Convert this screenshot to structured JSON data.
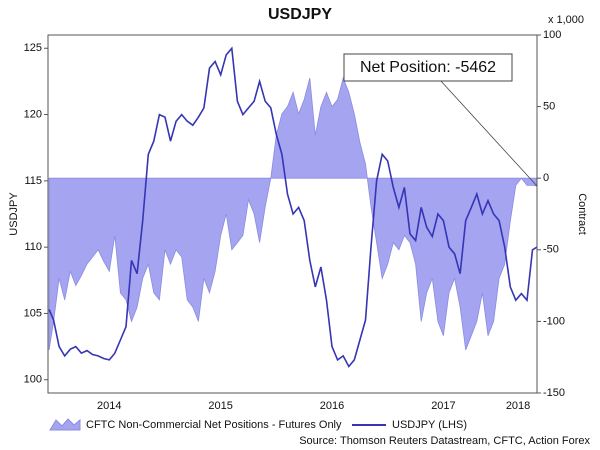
{
  "chart_data": {
    "type": "area-line",
    "title": "USDJPY",
    "ylabel": "USDJPY",
    "y2label": "Contract",
    "y2unit": "x 1,000",
    "source": "Source: Thomson Reuters Datastream, CFTC, Action Forex",
    "annotation": "Net Position: -5462",
    "grid": false,
    "xlim": [
      2013.95,
      2018.34
    ],
    "xticks": [
      {
        "value": 2014.5,
        "label": "2014"
      },
      {
        "value": 2015.5,
        "label": "2015"
      },
      {
        "value": 2016.5,
        "label": "2016"
      },
      {
        "value": 2017.5,
        "label": "2017"
      },
      {
        "value": 2018.17,
        "label": "2018"
      }
    ],
    "ylim": [
      99,
      126
    ],
    "yticks": [
      100,
      105,
      110,
      115,
      120,
      125
    ],
    "y2lim": [
      -150,
      100
    ],
    "y2ticks": [
      -150,
      -100,
      -50,
      0,
      50,
      100
    ],
    "x": [
      2013.96,
      2014,
      2014.05,
      2014.1,
      2014.15,
      2014.2,
      2014.25,
      2014.3,
      2014.35,
      2014.4,
      2014.45,
      2014.5,
      2014.55,
      2014.6,
      2014.65,
      2014.7,
      2014.75,
      2014.8,
      2014.85,
      2014.9,
      2014.95,
      2015,
      2015.05,
      2015.1,
      2015.15,
      2015.2,
      2015.25,
      2015.3,
      2015.35,
      2015.4,
      2015.45,
      2015.5,
      2015.55,
      2015.6,
      2015.65,
      2015.7,
      2015.75,
      2015.8,
      2015.85,
      2015.9,
      2015.95,
      2016,
      2016.05,
      2016.1,
      2016.15,
      2016.2,
      2016.25,
      2016.3,
      2016.35,
      2016.4,
      2016.45,
      2016.5,
      2016.55,
      2016.6,
      2016.65,
      2016.7,
      2016.75,
      2016.8,
      2016.85,
      2016.9,
      2016.95,
      2017,
      2017.05,
      2017.1,
      2017.15,
      2017.2,
      2017.25,
      2017.3,
      2017.35,
      2017.4,
      2017.45,
      2017.5,
      2017.55,
      2017.6,
      2017.65,
      2017.7,
      2017.75,
      2017.8,
      2017.85,
      2017.9,
      2017.95,
      2018,
      2018.05,
      2018.1,
      2018.15,
      2018.2,
      2018.25,
      2018.3,
      2018.34
    ],
    "series": [
      {
        "name": "CFTC Non-Commercial Net Positions - Futures Only",
        "color": "#a4a4f0",
        "axis": "y2",
        "values": [
          -120,
          -100,
          -70,
          -85,
          -65,
          -75,
          -68,
          -60,
          -55,
          -50,
          -58,
          -65,
          -40,
          -80,
          -85,
          -100,
          -90,
          -70,
          -60,
          -80,
          -85,
          -50,
          -60,
          -50,
          -55,
          -85,
          -90,
          -100,
          -70,
          -80,
          -65,
          -40,
          -25,
          -50,
          -45,
          -40,
          -15,
          -25,
          -45,
          -20,
          0,
          30,
          45,
          50,
          60,
          45,
          55,
          70,
          30,
          50,
          60,
          50,
          55,
          70,
          60,
          45,
          25,
          10,
          -20,
          -45,
          -70,
          -60,
          -45,
          -50,
          -40,
          -45,
          -60,
          -100,
          -80,
          -70,
          -100,
          -110,
          -80,
          -70,
          -90,
          -120,
          -110,
          -100,
          -80,
          -110,
          -100,
          -70,
          -60,
          -30,
          -5,
          0,
          -5,
          -5,
          -5.462
        ]
      },
      {
        "name": "USDJPY (LHS)",
        "color": "#3535b5",
        "axis": "y",
        "values": [
          105.3,
          104.5,
          102.5,
          101.8,
          102.3,
          102.5,
          102.0,
          102.2,
          101.9,
          101.8,
          101.6,
          101.5,
          102.0,
          103.0,
          104.0,
          109.0,
          108.0,
          112.0,
          117.0,
          118.0,
          120.0,
          119.8,
          118,
          119.5,
          120,
          119.5,
          119.2,
          119.8,
          120.5,
          123.5,
          124,
          123,
          124.5,
          125,
          121,
          120,
          120.5,
          121,
          122.5,
          121,
          120.5,
          118.5,
          117,
          114,
          112.5,
          113,
          112,
          109,
          107,
          108.5,
          106,
          102.5,
          101.5,
          101.8,
          101,
          101.5,
          103,
          104.5,
          110,
          115,
          117,
          116.5,
          114.5,
          113,
          114.5,
          111,
          110.5,
          113,
          111.5,
          110.8,
          112.5,
          112,
          110,
          109.5,
          108,
          112,
          113,
          114,
          112.5,
          113.5,
          112.5,
          112,
          110,
          107,
          106,
          106.5,
          106,
          109.8,
          110
        ]
      }
    ]
  }
}
